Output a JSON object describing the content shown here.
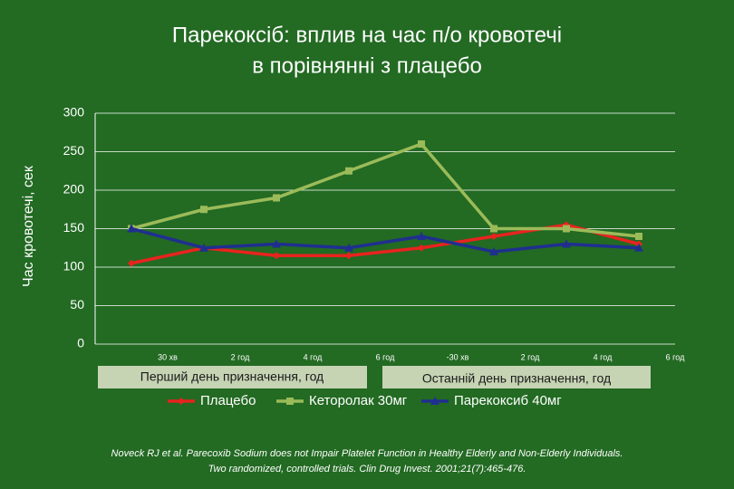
{
  "chart_data": {
    "type": "line",
    "title": [
      "Парекоксіб: вплив на час п/о кровотечі",
      "в порівнянні з плацебо"
    ],
    "y_label": "Час кровотечі, сек",
    "categories": [
      "30 хв",
      "2 год",
      "4 год",
      "6 год",
      "-30 хв",
      "2 год",
      "4 год",
      "6 год"
    ],
    "groups": [
      "Перший день призначення, год",
      "Останній день призначення, год"
    ],
    "series": [
      {
        "name": "Плацебо",
        "color": "#e8231e",
        "marker": "diamond",
        "values": [
          105,
          125,
          115,
          115,
          125,
          140,
          155,
          130
        ]
      },
      {
        "name": "Кеторолак 30мг",
        "color": "#9bbb59",
        "marker": "square",
        "values": [
          150,
          175,
          190,
          225,
          260,
          150,
          150,
          140
        ]
      },
      {
        "name": "Парекоксиб 40мг",
        "color": "#1f2f8f",
        "marker": "triangle",
        "values": [
          150,
          125,
          130,
          125,
          140,
          120,
          130,
          125
        ]
      }
    ],
    "ylim": [
      0,
      300
    ],
    "yticks": [
      0,
      50,
      100,
      150,
      200,
      250,
      300
    ],
    "grid": true,
    "footnote": [
      "Noveck RJ et al. Parecoxib Sodium does not Impair Platelet Function in Healthy Elderly and Non-Elderly Individuals.",
      "Two randomized, controlled trials. Clin Drug Invest. 2001;21(7):465-476."
    ]
  }
}
